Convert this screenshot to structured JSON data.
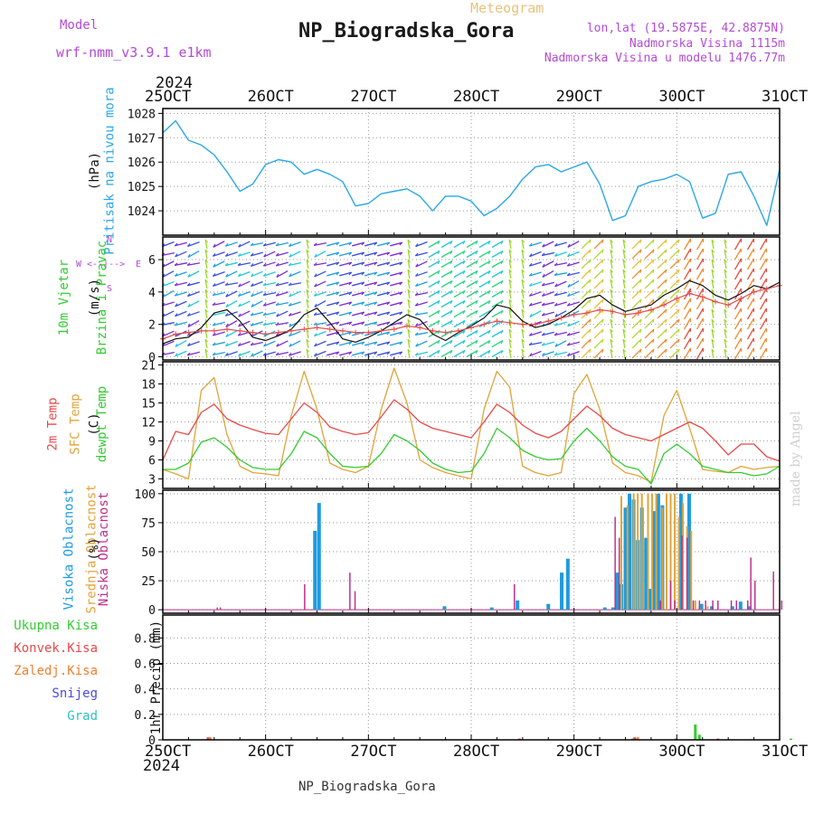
{
  "header": {
    "model_label": "Model",
    "model_name": "wrf-nmm_v3.9.1 e1km",
    "meteogram_label": "Meteogram",
    "title": "NP_Biogradska_Gora",
    "coords": "lon,lat (19.5875E, 42.8875N)",
    "elevation": "Nadmorska Visina 1115m",
    "elevation_model": "Nadmorska Visina u modelu 1476.77m"
  },
  "footer": {
    "title": "NP_Biogradska_Gora",
    "credit": "made by Angel"
  },
  "axis_top": {
    "year": "2024",
    "ticks": [
      "25OCT",
      "26OCT",
      "27OCT",
      "28OCT",
      "29OCT",
      "30OCT",
      "31OCT"
    ]
  },
  "axis_bottom": {
    "year": "2024",
    "ticks": [
      "25OCT",
      "26OCT",
      "27OCT",
      "28OCT",
      "29OCT",
      "30OCT",
      "31OCT"
    ]
  },
  "colors": {
    "pressure": "#2aa7e8",
    "wind_speed": "#111111",
    "gust": "#e84a4a",
    "temp2m": "#e84a4a",
    "sfc_temp": "#e0a43a",
    "dewpoint": "#33cc33",
    "high_cloud": "#1e9be0",
    "mid_cloud": "#e0a43a",
    "low_cloud": "#c0308c",
    "total_rain": "#33cc33",
    "conv_rain": "#e84a4a",
    "frozen": "#f08030",
    "snow": "#4a4ae0",
    "hail": "#30c0c0"
  },
  "chart_data": [
    {
      "id": "pressure",
      "type": "line",
      "ylabel": [
        "Pritisak na nivou mora",
        "(hPa)"
      ],
      "yticks": [
        1024,
        1025,
        1026,
        1027,
        1028
      ],
      "ylim": [
        1023,
        1028.2
      ],
      "x": [
        0,
        0.125,
        0.25,
        0.375,
        0.5,
        0.625,
        0.75,
        0.875,
        1,
        1.125,
        1.25,
        1.375,
        1.5,
        1.625,
        1.75,
        1.875,
        2,
        2.125,
        2.25,
        2.375,
        2.5,
        2.625,
        2.75,
        2.875,
        3,
        3.125,
        3.25,
        3.375,
        3.5,
        3.625,
        3.75,
        3.875,
        4,
        4.125,
        4.25,
        4.375,
        4.5,
        4.625,
        4.75,
        4.875,
        5,
        5.125,
        5.25,
        5.375,
        5.5,
        5.625,
        5.75,
        5.875,
        6
      ],
      "series": [
        {
          "values": [
            1027.2,
            1027.7,
            1026.9,
            1026.7,
            1026.3,
            1025.6,
            1024.8,
            1025.1,
            1025.9,
            1026.1,
            1026.0,
            1025.5,
            1025.7,
            1025.5,
            1025.2,
            1024.2,
            1024.3,
            1024.7,
            1024.8,
            1024.9,
            1024.6,
            1024.0,
            1024.6,
            1024.6,
            1024.4,
            1023.8,
            1024.1,
            1024.6,
            1025.3,
            1025.8,
            1025.9,
            1025.6,
            1025.8,
            1026.0,
            1025.1,
            1023.6,
            1023.8,
            1025.0,
            1025.2,
            1025.3,
            1025.5,
            1025.2,
            1023.7,
            1023.9,
            1025.5,
            1025.6,
            1024.6,
            1023.4,
            1025.7
          ]
        }
      ]
    },
    {
      "id": "wind",
      "type": "line",
      "ylabel": [
        "10m Vjetar",
        "Brzina i Pravac",
        "(m/s)"
      ],
      "direction_legend": {
        "n": "N",
        "s": "S",
        "w": "W",
        "e": "E"
      },
      "yticks": [
        0,
        2,
        4,
        6
      ],
      "ylim": [
        -0.2,
        7.4
      ],
      "x": [
        0,
        0.125,
        0.25,
        0.375,
        0.5,
        0.625,
        0.75,
        0.875,
        1,
        1.125,
        1.25,
        1.375,
        1.5,
        1.625,
        1.75,
        1.875,
        2,
        2.125,
        2.25,
        2.375,
        2.5,
        2.625,
        2.75,
        2.875,
        3,
        3.125,
        3.25,
        3.375,
        3.5,
        3.625,
        3.75,
        3.875,
        4,
        4.125,
        4.25,
        4.375,
        4.5,
        4.625,
        4.75,
        4.875,
        5,
        5.125,
        5.25,
        5.375,
        5.5,
        5.625,
        5.75,
        5.875,
        6
      ],
      "series": [
        {
          "values": [
            0.8,
            1.1,
            1.2,
            1.8,
            2.7,
            2.9,
            2.2,
            1.2,
            1.0,
            1.3,
            1.7,
            2.6,
            3.0,
            2.1,
            1.1,
            0.9,
            1.2,
            1.6,
            2.1,
            2.6,
            2.3,
            1.4,
            1.0,
            1.5,
            1.9,
            2.4,
            3.2,
            3.0,
            2.2,
            1.8,
            2.0,
            2.4,
            2.9,
            3.6,
            3.8,
            3.2,
            2.8,
            3.0,
            3.2,
            3.8,
            4.2,
            4.7,
            4.4,
            3.8,
            3.5,
            3.9,
            4.4,
            4.2,
            4.6
          ]
        },
        {
          "values": [
            1.1,
            1.4,
            1.5,
            1.6,
            1.6,
            1.7,
            1.6,
            1.5,
            1.4,
            1.5,
            1.6,
            1.7,
            1.8,
            1.7,
            1.6,
            1.5,
            1.5,
            1.6,
            1.7,
            1.9,
            1.8,
            1.6,
            1.5,
            1.6,
            1.8,
            2.0,
            2.2,
            2.1,
            2.0,
            2.0,
            2.2,
            2.4,
            2.6,
            2.7,
            2.9,
            2.8,
            2.6,
            2.7,
            2.9,
            3.2,
            3.6,
            3.9,
            3.7,
            3.4,
            3.2,
            3.6,
            4.0,
            4.2,
            4.4
          ]
        }
      ]
    },
    {
      "id": "temperature",
      "type": "line",
      "ylabel": [
        "2m Temp",
        "SFC Temp",
        "dewpt Temp",
        "(C)"
      ],
      "yticks": [
        3,
        6,
        9,
        12,
        15,
        18,
        21
      ],
      "ylim": [
        1.5,
        21.5
      ],
      "x": [
        0,
        0.125,
        0.25,
        0.375,
        0.5,
        0.625,
        0.75,
        0.875,
        1,
        1.125,
        1.25,
        1.375,
        1.5,
        1.625,
        1.75,
        1.875,
        2,
        2.125,
        2.25,
        2.375,
        2.5,
        2.625,
        2.75,
        2.875,
        3,
        3.125,
        3.25,
        3.375,
        3.5,
        3.625,
        3.75,
        3.875,
        4,
        4.125,
        4.25,
        4.375,
        4.5,
        4.625,
        4.75,
        4.875,
        5,
        5.125,
        5.25,
        5.375,
        5.5,
        5.625,
        5.75,
        5.875,
        6
      ],
      "series": [
        {
          "values": [
            6.0,
            10.5,
            10.0,
            13.5,
            14.8,
            12.5,
            11.5,
            10.8,
            10.2,
            10.0,
            12.5,
            15.0,
            13.5,
            11.2,
            10.5,
            10.0,
            10.3,
            12.8,
            15.5,
            14.0,
            12.0,
            11.0,
            10.5,
            10.0,
            9.5,
            12.0,
            14.8,
            13.5,
            11.5,
            10.2,
            9.5,
            10.5,
            12.5,
            14.5,
            13.0,
            11.0,
            10.0,
            9.5,
            9.0,
            10.0,
            11.0,
            12.0,
            11.0,
            9.0,
            6.8,
            8.5,
            8.5,
            6.5,
            5.8
          ]
        },
        {
          "values": [
            4.5,
            3.8,
            3.0,
            17.0,
            19.0,
            10.0,
            5.0,
            4.0,
            3.8,
            3.5,
            13.0,
            20.0,
            14.0,
            5.5,
            4.5,
            4.0,
            5.0,
            14.0,
            20.5,
            15.0,
            6.0,
            4.8,
            4.0,
            3.5,
            3.0,
            14.0,
            20.0,
            17.5,
            5.0,
            4.0,
            3.5,
            4.0,
            16.5,
            19.5,
            14.0,
            5.5,
            4.0,
            3.5,
            2.5,
            13.0,
            17.0,
            11.0,
            4.5,
            4.2,
            4.0,
            5.0,
            4.5,
            4.8,
            5.0
          ]
        },
        {
          "values": [
            4.5,
            4.5,
            5.5,
            8.8,
            9.5,
            8.0,
            6.0,
            4.8,
            4.5,
            4.5,
            7.0,
            10.5,
            9.5,
            7.0,
            5.0,
            4.8,
            5.0,
            7.0,
            10.0,
            9.0,
            7.5,
            5.5,
            4.5,
            4.0,
            4.2,
            7.0,
            11.0,
            9.5,
            7.5,
            6.5,
            6.0,
            6.2,
            9.0,
            11.0,
            9.0,
            6.5,
            5.0,
            4.5,
            2.2,
            7.0,
            8.5,
            7.0,
            5.0,
            4.5,
            4.0,
            4.0,
            3.5,
            3.8,
            5.0
          ]
        }
      ]
    },
    {
      "id": "cloud",
      "type": "bar",
      "ylabel": [
        "Visoka Oblacnost",
        "Srednja Oblacnost",
        "Niska Oblacnost",
        "(%)"
      ],
      "yticks": [
        0,
        25,
        50,
        75,
        100
      ],
      "ylim": [
        -3,
        103
      ],
      "series": [
        {
          "values": [
            [
              1.48,
              68
            ],
            [
              1.52,
              92
            ],
            [
              2.74,
              3
            ],
            [
              3.88,
              32
            ],
            [
              3.94,
              44
            ],
            [
              3.45,
              8
            ],
            [
              3.75,
              5
            ],
            [
              3.2,
              2
            ],
            [
              4.3,
              2
            ],
            [
              4.38,
              2
            ],
            [
              4.42,
              32
            ],
            [
              4.46,
              22
            ],
            [
              4.5,
              88
            ],
            [
              4.54,
              100
            ],
            [
              4.58,
              95
            ],
            [
              4.62,
              60
            ],
            [
              4.66,
              88
            ],
            [
              4.7,
              62
            ],
            [
              4.74,
              18
            ],
            [
              4.78,
              85
            ],
            [
              4.82,
              100
            ],
            [
              4.86,
              90
            ],
            [
              5.04,
              100
            ],
            [
              5.12,
              100
            ],
            [
              5.24,
              5
            ],
            [
              5.34,
              3
            ],
            [
              5.54,
              3
            ],
            [
              5.62,
              7
            ],
            [
              5.7,
              3
            ]
          ]
        },
        {
          "values": [
            [
              4.46,
              98
            ],
            [
              4.52,
              90
            ],
            [
              4.58,
              100
            ],
            [
              4.62,
              100
            ],
            [
              4.66,
              100
            ],
            [
              4.72,
              100
            ],
            [
              4.76,
              100
            ],
            [
              4.8,
              100
            ],
            [
              4.86,
              88
            ],
            [
              4.9,
              100
            ],
            [
              4.94,
              100
            ],
            [
              4.98,
              100
            ],
            [
              5.02,
              80
            ],
            [
              5.06,
              92
            ],
            [
              5.1,
              72
            ],
            [
              5.14,
              68
            ],
            [
              5.18,
              8
            ],
            [
              5.22,
              3
            ],
            [
              5.3,
              3
            ]
          ]
        },
        {
          "values": [
            [
              0.53,
              2
            ],
            [
              0.56,
              2
            ],
            [
              1.38,
              22
            ],
            [
              1.82,
              32
            ],
            [
              1.87,
              16
            ],
            [
              3.42,
              22
            ],
            [
              4.4,
              80
            ],
            [
              4.44,
              62
            ],
            [
              5.1,
              62
            ],
            [
              5.16,
              8
            ],
            [
              5.94,
              33
            ],
            [
              6.02,
              8
            ],
            [
              6.12,
              25
            ],
            [
              6.16,
              8
            ],
            [
              6.23,
              64
            ],
            [
              6.4,
              8
            ],
            [
              6.46,
              8
            ],
            [
              6.53,
              8
            ],
            [
              6.58,
              8
            ],
            [
              6.71,
              8
            ],
            [
              6.76,
              8
            ],
            [
              6.87,
              8
            ],
            [
              6.9,
              45
            ],
            [
              6.94,
              25
            ],
            [
              7.2,
              8
            ]
          ]
        }
      ]
    },
    {
      "id": "precip",
      "type": "bar",
      "ylabel": [
        "1hr Precip (mm)"
      ],
      "legend": [
        "Ukupna Kisa",
        "Konvek.Kisa",
        "Zaledj.Kisa",
        "Snijeg",
        "Grad"
      ],
      "yticks": [
        0,
        0.2,
        0.4,
        0.6,
        0.8
      ],
      "ylim": [
        0,
        0.98
      ],
      "series": [
        {
          "values": [
            [
              4.57,
              0.01
            ],
            [
              4.99,
              0.01
            ],
            [
              5.18,
              0.12
            ],
            [
              5.22,
              0.04
            ],
            [
              6.11,
              0.01
            ]
          ]
        },
        {
          "values": [
            [
              0.44,
              0.02
            ],
            [
              3.47,
              0.01
            ],
            [
              4.59,
              0.02
            ],
            [
              5.4,
              0.01
            ]
          ]
        },
        {
          "values": [
            [
              0.46,
              0.02
            ],
            [
              4.62,
              0.02
            ]
          ]
        },
        {
          "values": []
        },
        {
          "values": []
        }
      ]
    }
  ]
}
